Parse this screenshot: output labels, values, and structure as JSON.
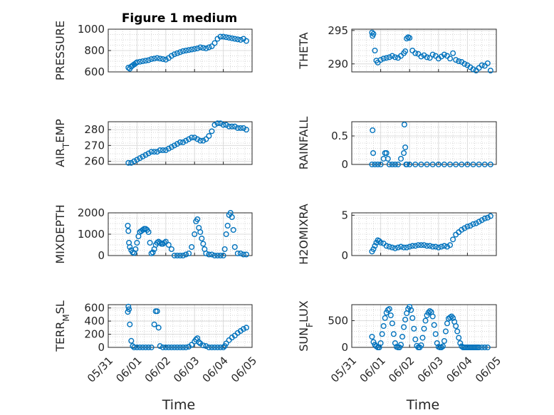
{
  "figure": {
    "title": "Figure 1 medium",
    "marker_color": "#0072BD",
    "x_tick_labels": [
      "05/31",
      "06/01",
      "06/02",
      "06/03",
      "06/04",
      "06/05"
    ],
    "x_axis_label": "Time"
  },
  "chart_data": [
    {
      "type": "scatter",
      "ylabel": "PRESSURE",
      "xlim": [
        "05/31",
        "06/05"
      ],
      "ylim": [
        600,
        1000
      ],
      "yticks": [
        600,
        800,
        1000
      ],
      "grid": true,
      "minor_grid": true,
      "x": [
        0.7,
        0.75,
        0.8,
        0.85,
        0.9,
        0.95,
        1.0,
        1.1,
        1.2,
        1.3,
        1.4,
        1.5,
        1.6,
        1.7,
        1.8,
        1.9,
        2.0,
        2.1,
        2.2,
        2.3,
        2.4,
        2.5,
        2.6,
        2.7,
        2.8,
        2.9,
        3.0,
        3.1,
        3.2,
        3.3,
        3.4,
        3.5,
        3.6,
        3.7,
        3.8,
        3.9,
        4.0,
        4.1,
        4.2,
        4.3,
        4.4,
        4.5,
        4.6,
        4.7,
        4.8
      ],
      "y": [
        640,
        630,
        650,
        660,
        670,
        680,
        690,
        695,
        700,
        705,
        710,
        720,
        725,
        730,
        725,
        720,
        715,
        730,
        750,
        765,
        775,
        785,
        795,
        800,
        805,
        810,
        815,
        820,
        830,
        825,
        820,
        830,
        840,
        870,
        910,
        930,
        930,
        925,
        920,
        915,
        910,
        905,
        900,
        910,
        890
      ]
    },
    {
      "type": "scatter",
      "ylabel": "THETA",
      "xlim": [
        "05/31",
        "06/05"
      ],
      "ylim": [
        288.8,
        295.2
      ],
      "yticks": [
        290,
        295
      ],
      "grid": true,
      "minor_grid": true,
      "x": [
        0.7,
        0.72,
        0.75,
        0.8,
        0.85,
        0.9,
        1.0,
        1.1,
        1.2,
        1.3,
        1.4,
        1.5,
        1.6,
        1.7,
        1.8,
        1.85,
        1.9,
        1.95,
        2.0,
        2.1,
        2.2,
        2.3,
        2.4,
        2.5,
        2.6,
        2.7,
        2.8,
        2.9,
        3.0,
        3.1,
        3.2,
        3.3,
        3.4,
        3.5,
        3.6,
        3.7,
        3.8,
        3.9,
        4.0,
        4.1,
        4.2,
        4.3,
        4.4,
        4.5,
        4.6,
        4.7,
        4.8
      ],
      "y": [
        294.7,
        294.2,
        294.5,
        292.0,
        290.5,
        290.2,
        290.6,
        290.8,
        290.9,
        291.0,
        291.2,
        291.0,
        290.9,
        291.2,
        291.6,
        291.9,
        293.8,
        294.0,
        293.9,
        292.0,
        291.6,
        291.5,
        291.1,
        291.3,
        291.0,
        290.9,
        291.4,
        291.2,
        290.8,
        291.1,
        291.4,
        291.2,
        290.8,
        291.6,
        290.6,
        290.4,
        290.3,
        290.0,
        289.8,
        289.5,
        289.2,
        289.0,
        289.4,
        289.8,
        289.7,
        290.1,
        289.0
      ]
    },
    {
      "type": "scatter",
      "ylabel": "AIR_TEMP",
      "ylabel_main": "AIR",
      "ylabel_sub": "T",
      "ylabel_rest": "EMP",
      "xlim": [
        "05/31",
        "06/05"
      ],
      "ylim": [
        258,
        285
      ],
      "yticks": [
        260,
        270,
        280
      ],
      "grid": true,
      "minor_grid": true,
      "x": [
        0.7,
        0.8,
        0.9,
        1.0,
        1.1,
        1.2,
        1.3,
        1.4,
        1.5,
        1.6,
        1.7,
        1.8,
        1.9,
        2.0,
        2.1,
        2.2,
        2.3,
        2.4,
        2.5,
        2.6,
        2.7,
        2.8,
        2.9,
        3.0,
        3.1,
        3.2,
        3.3,
        3.4,
        3.5,
        3.6,
        3.7,
        3.8,
        3.9,
        4.0,
        4.1,
        4.2,
        4.3,
        4.4,
        4.5,
        4.6,
        4.7,
        4.8
      ],
      "y": [
        259,
        259,
        260,
        261,
        262,
        263,
        264,
        265,
        266,
        266,
        266,
        267,
        267,
        267,
        268,
        269,
        270,
        271,
        272,
        272,
        273,
        274,
        275,
        275,
        274,
        273,
        273,
        274,
        276,
        279,
        283,
        284,
        284,
        283,
        283,
        282,
        282,
        282,
        281,
        281,
        281,
        280
      ]
    },
    {
      "type": "scatter",
      "ylabel": "RAINFALL",
      "xlim": [
        "05/31",
        "06/05"
      ],
      "ylim": [
        0,
        0.75
      ],
      "yticks": [
        0,
        0.5
      ],
      "grid": true,
      "minor_grid": true,
      "x": [
        0.7,
        0.72,
        0.74,
        0.8,
        0.9,
        1.0,
        1.1,
        1.15,
        1.2,
        1.25,
        1.3,
        1.4,
        1.5,
        1.6,
        1.7,
        1.8,
        1.82,
        1.85,
        1.88,
        1.9,
        2.0,
        2.2,
        2.4,
        2.6,
        2.8,
        3.0,
        3.2,
        3.4,
        3.6,
        3.8,
        4.0,
        4.2,
        4.4,
        4.6,
        4.8
      ],
      "y": [
        0,
        0.6,
        0.2,
        0,
        0,
        0,
        0.1,
        0.2,
        0.2,
        0.1,
        0,
        0,
        0,
        0,
        0.1,
        0.2,
        0.7,
        0.3,
        0,
        0,
        0,
        0,
        0,
        0,
        0,
        0,
        0,
        0,
        0,
        0,
        0,
        0,
        0,
        0,
        0
      ]
    },
    {
      "type": "scatter",
      "ylabel": "MIXDEPTH",
      "xlim": [
        "05/31",
        "06/05"
      ],
      "ylim": [
        0,
        2000
      ],
      "yticks": [
        0,
        1000,
        2000
      ],
      "grid": true,
      "minor_grid": true,
      "x": [
        0.68,
        0.7,
        0.72,
        0.75,
        0.8,
        0.85,
        0.9,
        0.95,
        1.0,
        1.05,
        1.1,
        1.15,
        1.2,
        1.25,
        1.3,
        1.35,
        1.4,
        1.45,
        1.5,
        1.55,
        1.6,
        1.65,
        1.7,
        1.75,
        1.8,
        1.85,
        1.9,
        1.95,
        2.0,
        2.1,
        2.2,
        2.3,
        2.4,
        2.5,
        2.6,
        2.7,
        2.8,
        2.9,
        3.0,
        3.05,
        3.1,
        3.15,
        3.2,
        3.25,
        3.3,
        3.35,
        3.4,
        3.5,
        3.6,
        3.7,
        3.8,
        3.9,
        4.0,
        4.05,
        4.1,
        4.15,
        4.2,
        4.25,
        4.3,
        4.35,
        4.4,
        4.5,
        4.6,
        4.7,
        4.8
      ],
      "y": [
        1400,
        1150,
        600,
        400,
        250,
        150,
        120,
        300,
        600,
        900,
        1100,
        1150,
        1200,
        1250,
        1250,
        1200,
        1100,
        600,
        100,
        150,
        300,
        500,
        600,
        650,
        600,
        550,
        550,
        600,
        650,
        500,
        300,
        0,
        0,
        0,
        0,
        50,
        100,
        400,
        1000,
        1600,
        1700,
        1300,
        1100,
        800,
        550,
        300,
        100,
        50,
        50,
        0,
        0,
        0,
        0,
        300,
        1000,
        1400,
        1900,
        2000,
        1800,
        1200,
        400,
        100,
        100,
        50,
        50
      ]
    },
    {
      "type": "scatter",
      "ylabel": "H2OMIXRA",
      "xlim": [
        "05/31",
        "06/05"
      ],
      "ylim": [
        0,
        5.3
      ],
      "yticks": [
        0,
        5
      ],
      "grid": true,
      "minor_grid": true,
      "x": [
        0.7,
        0.75,
        0.8,
        0.85,
        0.9,
        0.95,
        1.0,
        1.1,
        1.2,
        1.3,
        1.4,
        1.5,
        1.6,
        1.7,
        1.8,
        1.9,
        2.0,
        2.1,
        2.2,
        2.3,
        2.4,
        2.5,
        2.6,
        2.7,
        2.8,
        2.9,
        3.0,
        3.1,
        3.2,
        3.3,
        3.4,
        3.5,
        3.6,
        3.7,
        3.8,
        3.9,
        4.0,
        4.1,
        4.2,
        4.3,
        4.4,
        4.5,
        4.6,
        4.7,
        4.8
      ],
      "y": [
        0.5,
        0.8,
        1.2,
        1.6,
        1.9,
        1.8,
        1.6,
        1.5,
        1.2,
        1.1,
        1.0,
        0.9,
        1.0,
        1.1,
        1.0,
        1.0,
        1.1,
        1.2,
        1.2,
        1.3,
        1.3,
        1.3,
        1.2,
        1.2,
        1.1,
        1.1,
        1.0,
        1.1,
        1.2,
        1.1,
        1.3,
        2.0,
        2.6,
        2.9,
        3.2,
        3.4,
        3.6,
        3.7,
        3.9,
        4.0,
        4.2,
        4.4,
        4.6,
        4.7,
        4.9
      ]
    },
    {
      "type": "scatter",
      "ylabel": "TERR_MSL",
      "ylabel_main": "TERR",
      "ylabel_sub": "M",
      "ylabel_rest": "SL",
      "xlim": [
        "05/31",
        "06/05"
      ],
      "ylim": [
        0,
        650
      ],
      "yticks": [
        0,
        200,
        400,
        600
      ],
      "grid": true,
      "minor_grid": true,
      "x": [
        0.68,
        0.7,
        0.72,
        0.75,
        0.8,
        0.85,
        0.9,
        1.0,
        1.1,
        1.2,
        1.3,
        1.4,
        1.5,
        1.6,
        1.65,
        1.7,
        1.75,
        1.8,
        1.9,
        2.0,
        2.1,
        2.2,
        2.3,
        2.4,
        2.5,
        2.6,
        2.7,
        2.8,
        2.9,
        3.0,
        3.05,
        3.1,
        3.15,
        3.2,
        3.3,
        3.4,
        3.5,
        3.6,
        3.7,
        3.8,
        3.9,
        4.0,
        4.05,
        4.1,
        4.2,
        4.3,
        4.4,
        4.5,
        4.6,
        4.7,
        4.8
      ],
      "y": [
        540,
        620,
        580,
        350,
        100,
        20,
        0,
        0,
        0,
        0,
        0,
        0,
        0,
        350,
        550,
        550,
        300,
        20,
        0,
        0,
        0,
        0,
        0,
        0,
        0,
        0,
        0,
        10,
        40,
        90,
        120,
        140,
        80,
        60,
        30,
        20,
        0,
        0,
        0,
        0,
        0,
        0,
        20,
        60,
        110,
        150,
        180,
        220,
        250,
        280,
        300
      ]
    },
    {
      "type": "scatter",
      "ylabel": "SUN_FLUX",
      "ylabel_main": "SUN",
      "ylabel_sub": "F",
      "ylabel_rest": "LUX",
      "xlim": [
        "05/31",
        "06/05"
      ],
      "ylim": [
        0,
        800
      ],
      "yticks": [
        0,
        500
      ],
      "grid": true,
      "minor_grid": true,
      "x": [
        0.7,
        0.75,
        0.8,
        0.85,
        0.9,
        0.95,
        1.0,
        1.05,
        1.1,
        1.15,
        1.2,
        1.25,
        1.3,
        1.35,
        1.4,
        1.45,
        1.5,
        1.55,
        1.6,
        1.65,
        1.7,
        1.75,
        1.8,
        1.85,
        1.9,
        1.95,
        2.0,
        2.05,
        2.1,
        2.15,
        2.2,
        2.25,
        2.3,
        2.35,
        2.4,
        2.45,
        2.5,
        2.55,
        2.6,
        2.65,
        2.7,
        2.75,
        2.8,
        2.85,
        2.9,
        2.95,
        3.0,
        3.05,
        3.1,
        3.15,
        3.2,
        3.25,
        3.3,
        3.35,
        3.4,
        3.45,
        3.5,
        3.55,
        3.6,
        3.65,
        3.7,
        3.75,
        3.8,
        3.85,
        3.9,
        3.95,
        4.0,
        4.05,
        4.1,
        4.15,
        4.2,
        4.25,
        4.3,
        4.35,
        4.4,
        4.5,
        4.6,
        4.7
      ],
      "y": [
        200,
        100,
        50,
        20,
        0,
        0,
        80,
        250,
        400,
        550,
        650,
        700,
        720,
        600,
        450,
        250,
        80,
        10,
        0,
        0,
        50,
        200,
        380,
        520,
        640,
        720,
        760,
        700,
        550,
        350,
        150,
        30,
        0,
        0,
        40,
        180,
        350,
        500,
        600,
        650,
        680,
        660,
        580,
        420,
        250,
        80,
        10,
        0,
        0,
        20,
        120,
        300,
        450,
        540,
        560,
        580,
        550,
        480,
        400,
        300,
        180,
        80,
        20,
        0,
        0,
        0,
        0,
        0,
        0,
        0,
        0,
        0,
        0,
        0,
        0,
        0,
        0,
        0
      ]
    }
  ]
}
